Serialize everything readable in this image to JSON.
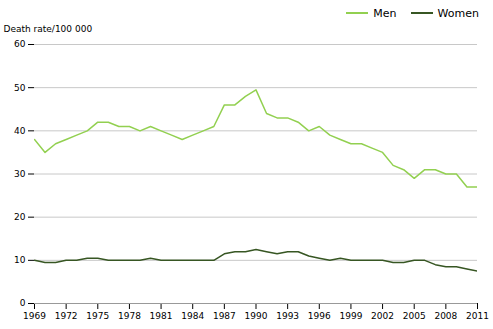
{
  "chart_data": {
    "type": "line",
    "ylabel": "Death rate/100 000",
    "x": [
      1969,
      1970,
      1971,
      1972,
      1973,
      1974,
      1975,
      1976,
      1977,
      1978,
      1979,
      1980,
      1981,
      1982,
      1983,
      1984,
      1985,
      1986,
      1987,
      1988,
      1989,
      1990,
      1991,
      1992,
      1993,
      1994,
      1995,
      1996,
      1997,
      1998,
      1999,
      2000,
      2001,
      2002,
      2003,
      2004,
      2005,
      2006,
      2007,
      2008,
      2009,
      2010,
      2011
    ],
    "series": [
      {
        "name": "Men",
        "color": "#92d050",
        "values": [
          38,
          35,
          37,
          38,
          39,
          40,
          42,
          42,
          41,
          41,
          40,
          41,
          40,
          39,
          38,
          39,
          40,
          41,
          46,
          46,
          48,
          49.5,
          44,
          43,
          43,
          42,
          40,
          41,
          39,
          38,
          37,
          37,
          36,
          35,
          32,
          31,
          29,
          31,
          31,
          30,
          30,
          27,
          27
        ]
      },
      {
        "name": "Women",
        "color": "#375623",
        "values": [
          10,
          9.5,
          9.5,
          10,
          10,
          10.5,
          10.5,
          10,
          10,
          10,
          10,
          10.5,
          10,
          10,
          10,
          10,
          10,
          10,
          11.5,
          12,
          12,
          12.5,
          12,
          11.5,
          12,
          12,
          11,
          10.5,
          10,
          10.5,
          10,
          10,
          10,
          10,
          9.5,
          9.5,
          10,
          10,
          9,
          8.5,
          8.5,
          8,
          7.5
        ]
      }
    ],
    "xlim": [
      1969,
      2011
    ],
    "xticks": [
      1969,
      1972,
      1975,
      1978,
      1981,
      1984,
      1987,
      1990,
      1993,
      1996,
      1999,
      2002,
      2005,
      2008,
      2011
    ],
    "ylim": [
      0,
      60
    ],
    "yticks": [
      0,
      10,
      20,
      30,
      40,
      50,
      60
    ],
    "grid": "y",
    "legend": "upper right"
  }
}
